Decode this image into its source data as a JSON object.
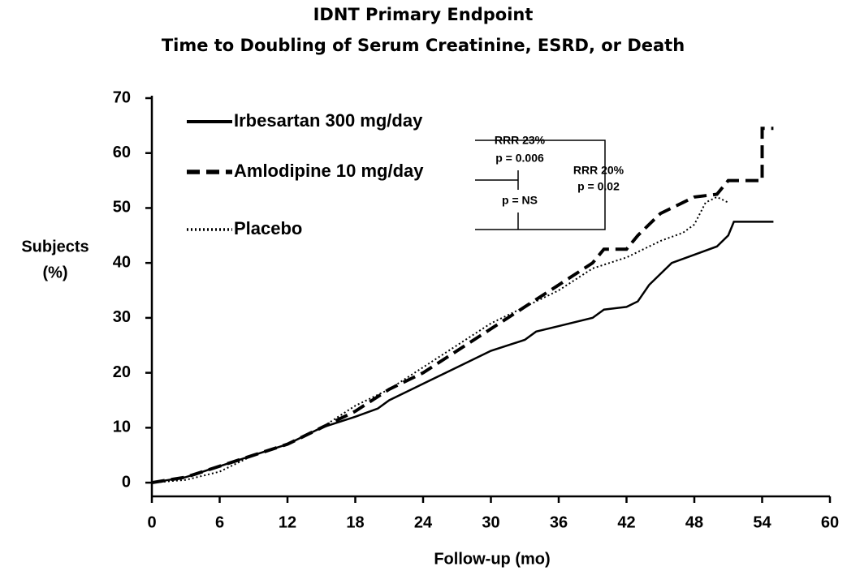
{
  "chart_data": {
    "type": "line",
    "title": "IDNT Primary Endpoint",
    "subtitle": "Time to Doubling of Serum Creatinine, ESRD, or Death",
    "x_label": "Follow-up (mo)",
    "y_label": [
      "Subjects",
      "(%)"
    ],
    "xlim": [
      0,
      60
    ],
    "xticks": [
      0,
      6,
      12,
      18,
      24,
      30,
      36,
      42,
      48,
      54,
      60
    ],
    "ylim": [
      -2.5,
      70
    ],
    "yticks": [
      0,
      10,
      20,
      30,
      40,
      50,
      60,
      70
    ],
    "series": [
      {
        "name": "Irbesartan 300 mg/day",
        "color": "#000000",
        "line_style": "solid",
        "x": [
          0,
          3,
          6,
          9,
          12,
          15,
          18,
          20,
          21,
          24,
          27,
          30,
          33,
          34,
          36,
          39,
          40,
          42,
          43,
          44,
          46,
          48,
          50,
          51,
          51.5,
          55
        ],
        "values": [
          0,
          1,
          3,
          5,
          7,
          10,
          12,
          13.5,
          15,
          18,
          21,
          24,
          26,
          27.5,
          28.5,
          30,
          31.5,
          32,
          33,
          36,
          40,
          41.5,
          43,
          45,
          47.5,
          47.5
        ]
      },
      {
        "name": "Amlodipine 10 mg/day",
        "color": "#000000",
        "line_style": "dashed",
        "x": [
          0,
          3,
          6,
          9,
          12,
          15,
          18,
          21,
          24,
          27,
          30,
          33,
          36,
          39,
          40,
          42,
          43,
          45,
          47,
          48,
          50,
          51,
          54,
          54,
          55
        ],
        "values": [
          0,
          1,
          3,
          5,
          7,
          10,
          13,
          17,
          20,
          24,
          28,
          32,
          36,
          40,
          42.5,
          42.5,
          45,
          49,
          51,
          52,
          52.5,
          55,
          55,
          64.5,
          64.5
        ]
      },
      {
        "name": "Placebo",
        "color": "#000000",
        "line_style": "dotted",
        "x": [
          0,
          3,
          6,
          9,
          12,
          15,
          18,
          21,
          24,
          27,
          30,
          33,
          36,
          39,
          42,
          45,
          47,
          48,
          49,
          50,
          51
        ],
        "values": [
          0,
          0.5,
          2,
          5,
          7,
          10,
          14,
          17,
          21,
          25,
          29,
          32,
          35,
          39,
          41,
          44,
          45.5,
          47,
          51,
          52,
          51
        ]
      }
    ],
    "annotations": [
      "RRR 23%",
      "p = 0.006",
      "p = NS",
      "RRR 20%",
      "p = 0.02"
    ]
  }
}
